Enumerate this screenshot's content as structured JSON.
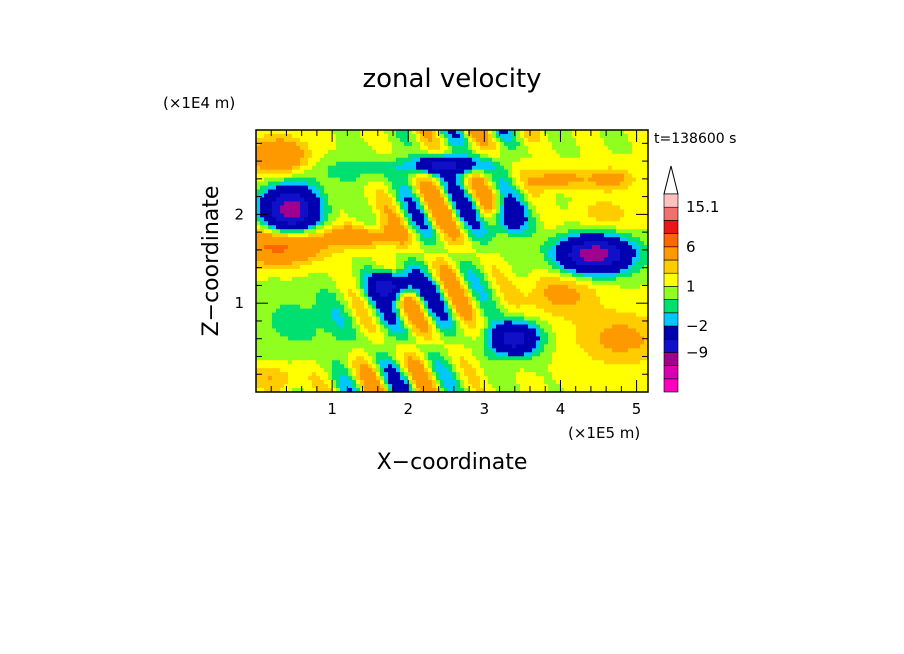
{
  "chart_data": {
    "type": "heatmap",
    "title": "zonal velocity",
    "xlabel": "X−coordinate",
    "ylabel": "Z−coordinate",
    "x_unit": "(×1E5 m)",
    "y_unit": "(×1E4 m)",
    "time_label": "t=138600 s",
    "xlim": [
      0,
      5.15
    ],
    "ylim": [
      0,
      2.95
    ],
    "x_ticks": [
      {
        "value": 1,
        "label": "1"
      },
      {
        "value": 2,
        "label": "2"
      },
      {
        "value": 3,
        "label": "3"
      },
      {
        "value": 4,
        "label": "4"
      },
      {
        "value": 5,
        "label": "5"
      }
    ],
    "y_ticks": [
      {
        "value": 1,
        "label": "1"
      },
      {
        "value": 2,
        "label": "2"
      }
    ],
    "colorbar": {
      "levels": [
        -15,
        -12,
        -9,
        -6,
        -2,
        -1,
        0,
        1,
        2,
        3,
        6,
        9,
        12,
        15.1
      ],
      "colors": [
        "#ff00c0",
        "#d800b0",
        "#a00090",
        "#1010c8",
        "#0000b0",
        "#00c8ff",
        "#00e070",
        "#90ff20",
        "#ffff00",
        "#ffcc00",
        "#ff9900",
        "#ff6600",
        "#e81818",
        "#f07070",
        "#ffc0c0"
      ],
      "overflow_color": "#ffffff",
      "labels": [
        {
          "value": 15.1,
          "text": "15.1"
        },
        {
          "value": 6,
          "text": "6"
        },
        {
          "value": 1,
          "text": "1"
        },
        {
          "value": -2,
          "text": "−2"
        },
        {
          "value": -9,
          "text": "−9"
        }
      ]
    }
  }
}
